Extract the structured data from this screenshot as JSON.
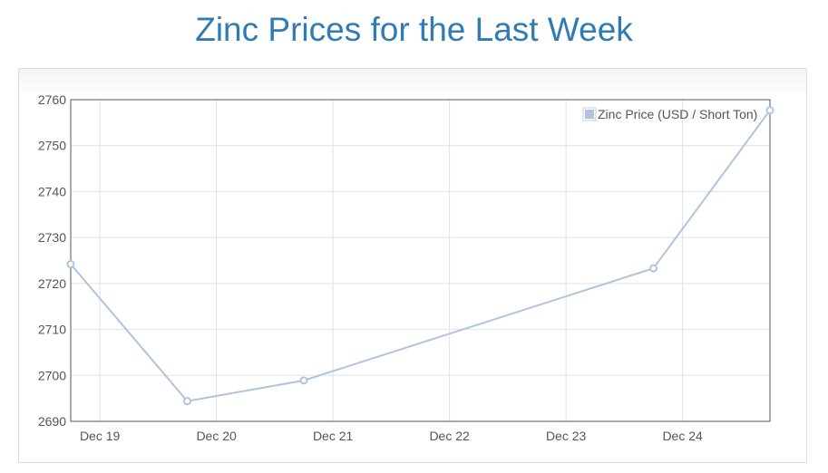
{
  "page": {
    "title": "Zinc Prices for the Last Week"
  },
  "chart_data": {
    "type": "line",
    "title": "Zinc Prices for the Last Week",
    "xlabel": "",
    "ylabel": "",
    "x_ticks": [
      "Dec 19",
      "Dec 20",
      "Dec 21",
      "Dec 22",
      "Dec 23",
      "Dec 24"
    ],
    "y_ticks": [
      2690,
      2700,
      2710,
      2720,
      2730,
      2740,
      2750,
      2760
    ],
    "ylim": [
      2690,
      2760
    ],
    "xlim": [
      "2023-12-18T18:00",
      "2023-12-24T18:00"
    ],
    "grid": true,
    "legend_position": "top-right",
    "series": [
      {
        "name": "Zinc Price (USD / Short Ton)",
        "color": "#b0c4de",
        "x": [
          "2023-12-18T18:00",
          "2023-12-19T18:00",
          "2023-12-20T18:00",
          "2023-12-23T18:00",
          "2023-12-24T18:00"
        ],
        "values": [
          2724.2,
          2694.4,
          2698.9,
          2723.3,
          2757.7
        ]
      }
    ]
  }
}
